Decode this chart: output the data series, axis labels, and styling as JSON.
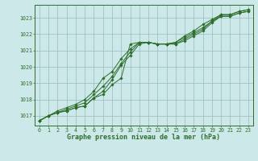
{
  "xlabel": "Graphe pression niveau de la mer (hPa)",
  "background_color": "#cce8e8",
  "grid_color": "#99bbbb",
  "line_color": "#2d6e2d",
  "xlim": [
    -0.5,
    23.5
  ],
  "ylim": [
    1016.4,
    1023.8
  ],
  "yticks": [
    1017,
    1018,
    1019,
    1020,
    1021,
    1022,
    1023
  ],
  "xticks": [
    0,
    1,
    2,
    3,
    4,
    5,
    6,
    7,
    8,
    9,
    10,
    11,
    12,
    13,
    14,
    15,
    16,
    17,
    18,
    19,
    20,
    21,
    22,
    23
  ],
  "series": [
    [
      1016.7,
      1017.0,
      1017.2,
      1017.3,
      1017.5,
      1017.6,
      1018.1,
      1018.3,
      1018.9,
      1019.3,
      1021.4,
      1021.5,
      1021.5,
      1021.4,
      1021.4,
      1021.4,
      1021.6,
      1021.9,
      1022.2,
      1022.7,
      1023.1,
      1023.1,
      1023.3,
      1023.4
    ],
    [
      1016.7,
      1017.0,
      1017.2,
      1017.3,
      1017.5,
      1017.6,
      1018.1,
      1018.5,
      1019.2,
      1020.1,
      1020.7,
      1021.4,
      1021.5,
      1021.4,
      1021.4,
      1021.4,
      1021.7,
      1022.0,
      1022.3,
      1022.8,
      1023.1,
      1023.1,
      1023.3,
      1023.4
    ],
    [
      1016.7,
      1017.0,
      1017.2,
      1017.4,
      1017.6,
      1017.8,
      1018.3,
      1018.8,
      1019.4,
      1020.2,
      1020.9,
      1021.5,
      1021.5,
      1021.4,
      1021.4,
      1021.5,
      1021.8,
      1022.1,
      1022.4,
      1022.8,
      1023.2,
      1023.2,
      1023.4,
      1023.5
    ],
    [
      1016.7,
      1017.0,
      1017.3,
      1017.5,
      1017.7,
      1018.0,
      1018.5,
      1019.3,
      1019.7,
      1020.5,
      1021.1,
      1021.5,
      1021.5,
      1021.4,
      1021.4,
      1021.5,
      1021.9,
      1022.2,
      1022.6,
      1022.9,
      1023.2,
      1023.2,
      1023.4,
      1023.5
    ]
  ]
}
